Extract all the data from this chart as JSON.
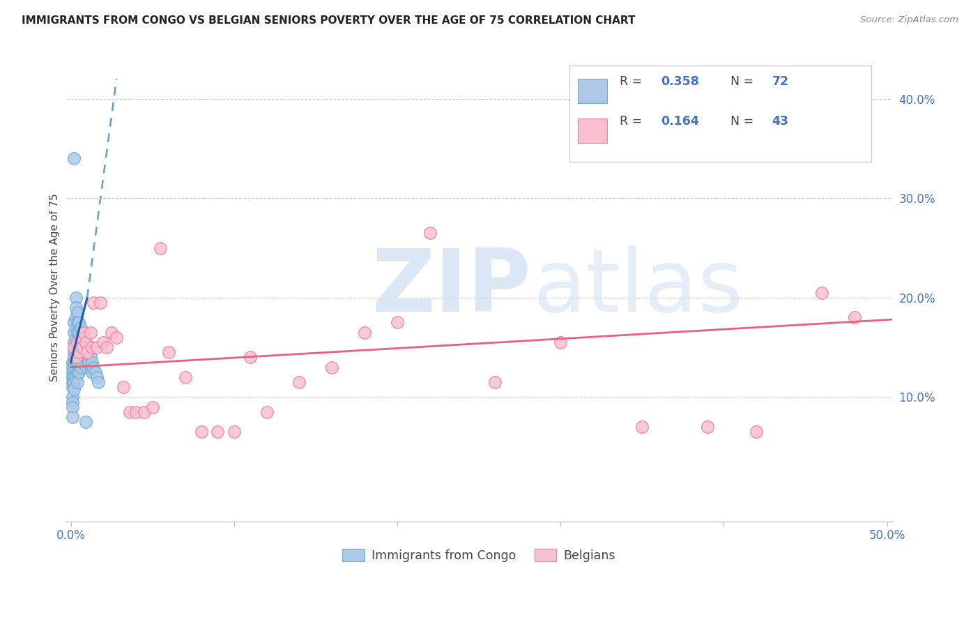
{
  "title": "IMMIGRANTS FROM CONGO VS BELGIAN SENIORS POVERTY OVER THE AGE OF 75 CORRELATION CHART",
  "source": "Source: ZipAtlas.com",
  "ylabel": "Seniors Poverty Over the Age of 75",
  "xlim": [
    -0.003,
    0.503
  ],
  "ylim": [
    -0.025,
    0.445
  ],
  "xtick_positions": [
    0.0,
    0.1,
    0.2,
    0.3,
    0.4,
    0.5
  ],
  "xtick_labels": [
    "0.0%",
    "",
    "",
    "",
    "",
    "50.0%"
  ],
  "ytick_positions": [
    0.1,
    0.2,
    0.3,
    0.4
  ],
  "ytick_labels": [
    "10.0%",
    "20.0%",
    "30.0%",
    "40.0%"
  ],
  "color_blue_fill": "#aec9e8",
  "color_blue_edge": "#6aaed6",
  "color_blue_line_solid": "#1a5fa8",
  "color_blue_line_dash": "#5fa0d0",
  "color_pink_fill": "#f9c0cf",
  "color_pink_edge": "#f080a0",
  "color_pink_line": "#e8607a",
  "color_axis_text": "#4472c4",
  "color_grid": "#cccccc",
  "R_blue": "0.358",
  "N_blue": "72",
  "R_pink": "0.164",
  "N_pink": "43",
  "legend_label_blue": "Immigrants from Congo",
  "legend_label_pink": "Belgians",
  "watermark_color": "#ccddf0",
  "blue_x": [
    0.001,
    0.001,
    0.001,
    0.001,
    0.001,
    0.001,
    0.001,
    0.001,
    0.001,
    0.001,
    0.002,
    0.002,
    0.002,
    0.002,
    0.002,
    0.002,
    0.002,
    0.002,
    0.002,
    0.002,
    0.003,
    0.003,
    0.003,
    0.003,
    0.003,
    0.003,
    0.003,
    0.003,
    0.003,
    0.004,
    0.004,
    0.004,
    0.004,
    0.004,
    0.004,
    0.004,
    0.004,
    0.005,
    0.005,
    0.005,
    0.005,
    0.005,
    0.005,
    0.006,
    0.006,
    0.006,
    0.006,
    0.006,
    0.007,
    0.007,
    0.007,
    0.007,
    0.008,
    0.008,
    0.008,
    0.009,
    0.009,
    0.01,
    0.01,
    0.01,
    0.011,
    0.011,
    0.012,
    0.012,
    0.013,
    0.013,
    0.014,
    0.015,
    0.016,
    0.017,
    0.002,
    0.009
  ],
  "blue_y": [
    0.135,
    0.13,
    0.125,
    0.12,
    0.115,
    0.11,
    0.1,
    0.095,
    0.09,
    0.08,
    0.175,
    0.165,
    0.155,
    0.145,
    0.14,
    0.135,
    0.13,
    0.12,
    0.115,
    0.108,
    0.2,
    0.19,
    0.18,
    0.17,
    0.16,
    0.15,
    0.14,
    0.13,
    0.12,
    0.185,
    0.175,
    0.165,
    0.155,
    0.145,
    0.135,
    0.125,
    0.115,
    0.175,
    0.165,
    0.155,
    0.145,
    0.135,
    0.125,
    0.17,
    0.16,
    0.15,
    0.14,
    0.13,
    0.165,
    0.155,
    0.145,
    0.135,
    0.16,
    0.15,
    0.14,
    0.155,
    0.145,
    0.15,
    0.14,
    0.13,
    0.145,
    0.135,
    0.14,
    0.13,
    0.135,
    0.125,
    0.13,
    0.125,
    0.12,
    0.115,
    0.34,
    0.075
  ],
  "pink_x": [
    0.002,
    0.003,
    0.004,
    0.005,
    0.006,
    0.007,
    0.008,
    0.009,
    0.01,
    0.012,
    0.013,
    0.014,
    0.016,
    0.018,
    0.02,
    0.022,
    0.025,
    0.028,
    0.032,
    0.036,
    0.04,
    0.045,
    0.05,
    0.055,
    0.06,
    0.07,
    0.08,
    0.09,
    0.1,
    0.11,
    0.12,
    0.14,
    0.16,
    0.18,
    0.2,
    0.22,
    0.26,
    0.3,
    0.35,
    0.39,
    0.42,
    0.46,
    0.48
  ],
  "pink_y": [
    0.15,
    0.14,
    0.155,
    0.145,
    0.16,
    0.15,
    0.165,
    0.155,
    0.145,
    0.165,
    0.15,
    0.195,
    0.15,
    0.195,
    0.155,
    0.15,
    0.165,
    0.16,
    0.11,
    0.085,
    0.085,
    0.085,
    0.09,
    0.25,
    0.145,
    0.12,
    0.065,
    0.065,
    0.065,
    0.14,
    0.085,
    0.115,
    0.13,
    0.165,
    0.175,
    0.265,
    0.115,
    0.155,
    0.07,
    0.07,
    0.065,
    0.205,
    0.18
  ],
  "blue_solid_line_x": [
    0.0,
    0.01
  ],
  "blue_solid_line_y": [
    0.135,
    0.2
  ],
  "blue_dash_line_x": [
    0.01,
    0.028
  ],
  "blue_dash_line_y": [
    0.2,
    0.42
  ],
  "pink_line_x": [
    0.0,
    0.503
  ],
  "pink_line_y": [
    0.13,
    0.178
  ]
}
